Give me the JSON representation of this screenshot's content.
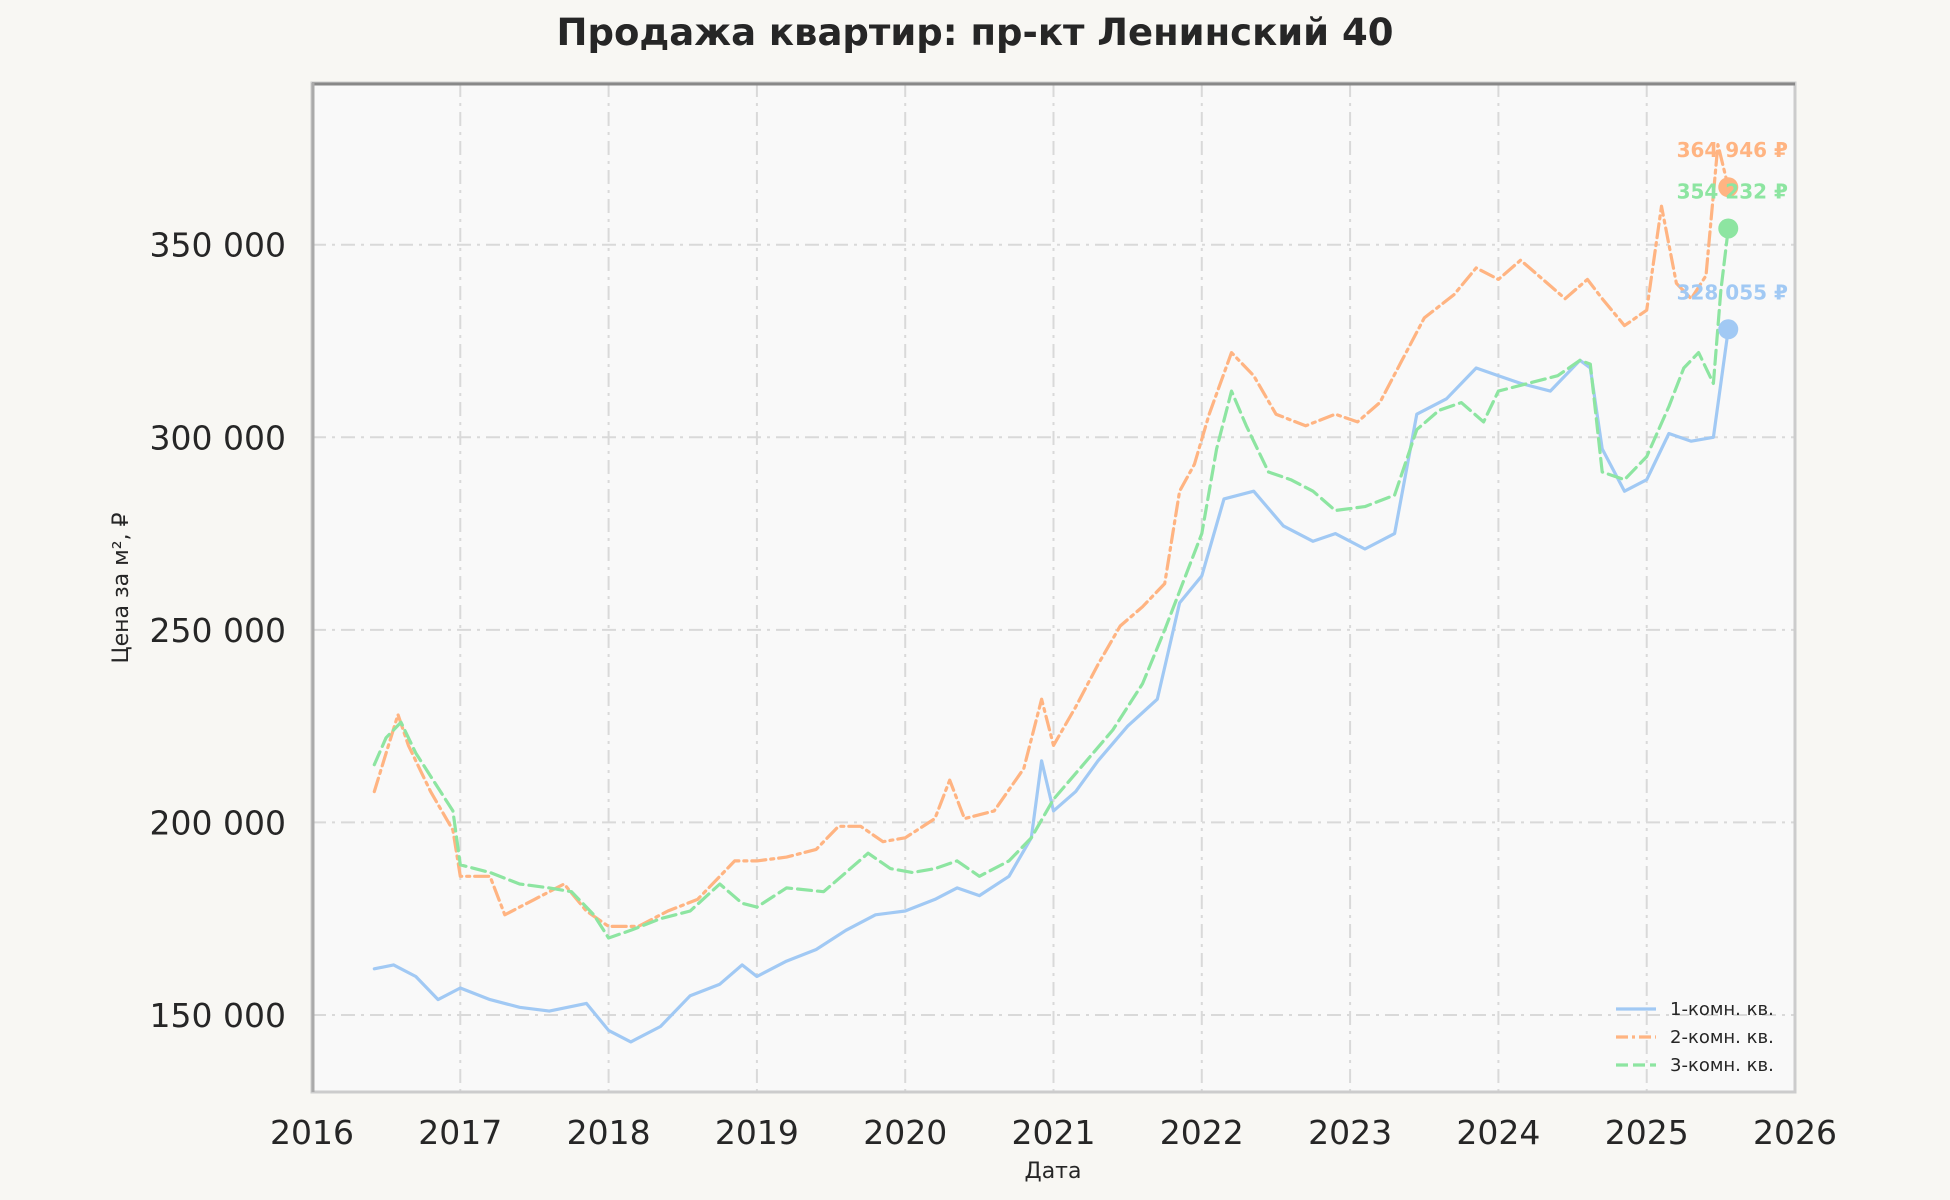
{
  "colors": {
    "background": "#f8f7f3",
    "plot_background": "#f9f9f9",
    "grid": "#d9d9d9",
    "series_1": "#a1c9f4",
    "series_2": "#ffb482",
    "series_3": "#8de5a1"
  },
  "chart_data": {
    "type": "line",
    "title": "Продажа квартир: пр-кт Ленинский 40",
    "xlabel": "Дата",
    "ylabel": "Цена за м², ₽",
    "xlim": [
      2016.0,
      2026.0
    ],
    "ylim": [
      130000,
      392000
    ],
    "x_ticks": [
      "2016",
      "2017",
      "2018",
      "2019",
      "2020",
      "2021",
      "2022",
      "2023",
      "2024",
      "2025",
      "2026"
    ],
    "y_ticks": [
      {
        "value": 150000,
        "label": "150 000"
      },
      {
        "value": 200000,
        "label": "200 000"
      },
      {
        "value": 250000,
        "label": "250 000"
      },
      {
        "value": 300000,
        "label": "300 000"
      },
      {
        "value": 350000,
        "label": "350 000"
      }
    ],
    "grid": true,
    "legend_position": "bottom-right",
    "x_unit": "year (decimal)",
    "series": [
      {
        "name": "1-комн. кв.",
        "color": "#a1c9f4",
        "dash": "solid",
        "end_label": "328 055 ₽",
        "end_value": 328055,
        "points": [
          [
            2016.42,
            162000
          ],
          [
            2016.55,
            163000
          ],
          [
            2016.7,
            160000
          ],
          [
            2016.85,
            154000
          ],
          [
            2017.0,
            157000
          ],
          [
            2017.2,
            154000
          ],
          [
            2017.4,
            152000
          ],
          [
            2017.6,
            151000
          ],
          [
            2017.85,
            153000
          ],
          [
            2018.0,
            146000
          ],
          [
            2018.15,
            143000
          ],
          [
            2018.35,
            147000
          ],
          [
            2018.55,
            155000
          ],
          [
            2018.75,
            158000
          ],
          [
            2018.9,
            163000
          ],
          [
            2019.0,
            160000
          ],
          [
            2019.2,
            164000
          ],
          [
            2019.4,
            167000
          ],
          [
            2019.6,
            172000
          ],
          [
            2019.8,
            176000
          ],
          [
            2020.0,
            177000
          ],
          [
            2020.2,
            180000
          ],
          [
            2020.35,
            183000
          ],
          [
            2020.5,
            181000
          ],
          [
            2020.7,
            186000
          ],
          [
            2020.85,
            196000
          ],
          [
            2020.92,
            216000
          ],
          [
            2021.0,
            203000
          ],
          [
            2021.15,
            208000
          ],
          [
            2021.3,
            216000
          ],
          [
            2021.5,
            225000
          ],
          [
            2021.7,
            232000
          ],
          [
            2021.85,
            257000
          ],
          [
            2022.0,
            264000
          ],
          [
            2022.15,
            284000
          ],
          [
            2022.35,
            286000
          ],
          [
            2022.55,
            277000
          ],
          [
            2022.75,
            273000
          ],
          [
            2022.9,
            275000
          ],
          [
            2023.1,
            271000
          ],
          [
            2023.3,
            275000
          ],
          [
            2023.45,
            306000
          ],
          [
            2023.65,
            310000
          ],
          [
            2023.85,
            318000
          ],
          [
            2024.0,
            316000
          ],
          [
            2024.15,
            314000
          ],
          [
            2024.35,
            312000
          ],
          [
            2024.55,
            320000
          ],
          [
            2024.62,
            318000
          ],
          [
            2024.7,
            297000
          ],
          [
            2024.85,
            286000
          ],
          [
            2025.0,
            289000
          ],
          [
            2025.15,
            301000
          ],
          [
            2025.3,
            299000
          ],
          [
            2025.45,
            300000
          ],
          [
            2025.55,
            328055
          ]
        ]
      },
      {
        "name": "2-комн. кв.",
        "color": "#ffb482",
        "dash": "dashdot",
        "end_label": "364 946 ₽",
        "end_value": 364946,
        "points": [
          [
            2016.42,
            208000
          ],
          [
            2016.5,
            218000
          ],
          [
            2016.58,
            228000
          ],
          [
            2016.65,
            220000
          ],
          [
            2016.8,
            208000
          ],
          [
            2016.95,
            198000
          ],
          [
            2017.0,
            186000
          ],
          [
            2017.2,
            186000
          ],
          [
            2017.3,
            176000
          ],
          [
            2017.5,
            180000
          ],
          [
            2017.7,
            184000
          ],
          [
            2017.85,
            177000
          ],
          [
            2018.0,
            173000
          ],
          [
            2018.2,
            173000
          ],
          [
            2018.4,
            177000
          ],
          [
            2018.6,
            180000
          ],
          [
            2018.85,
            190000
          ],
          [
            2019.0,
            190000
          ],
          [
            2019.2,
            191000
          ],
          [
            2019.4,
            193000
          ],
          [
            2019.55,
            199000
          ],
          [
            2019.7,
            199000
          ],
          [
            2019.85,
            195000
          ],
          [
            2020.0,
            196000
          ],
          [
            2020.2,
            201000
          ],
          [
            2020.3,
            211000
          ],
          [
            2020.4,
            201000
          ],
          [
            2020.6,
            203000
          ],
          [
            2020.8,
            214000
          ],
          [
            2020.92,
            232000
          ],
          [
            2021.0,
            220000
          ],
          [
            2021.15,
            230000
          ],
          [
            2021.3,
            241000
          ],
          [
            2021.45,
            251000
          ],
          [
            2021.6,
            256000
          ],
          [
            2021.75,
            262000
          ],
          [
            2021.85,
            286000
          ],
          [
            2021.95,
            293000
          ],
          [
            2022.05,
            306000
          ],
          [
            2022.2,
            322000
          ],
          [
            2022.35,
            316000
          ],
          [
            2022.5,
            306000
          ],
          [
            2022.7,
            303000
          ],
          [
            2022.9,
            306000
          ],
          [
            2023.05,
            304000
          ],
          [
            2023.2,
            309000
          ],
          [
            2023.35,
            320000
          ],
          [
            2023.5,
            331000
          ],
          [
            2023.7,
            337000
          ],
          [
            2023.85,
            344000
          ],
          [
            2024.0,
            341000
          ],
          [
            2024.15,
            346000
          ],
          [
            2024.3,
            341000
          ],
          [
            2024.45,
            336000
          ],
          [
            2024.6,
            341000
          ],
          [
            2024.7,
            336000
          ],
          [
            2024.85,
            329000
          ],
          [
            2025.0,
            333000
          ],
          [
            2025.1,
            360000
          ],
          [
            2025.2,
            340000
          ],
          [
            2025.3,
            336000
          ],
          [
            2025.4,
            342000
          ],
          [
            2025.48,
            376000
          ],
          [
            2025.55,
            364946
          ]
        ]
      },
      {
        "name": "3-комн. кв.",
        "color": "#8de5a1",
        "dash": "dashed",
        "end_label": "354 232 ₽",
        "end_value": 354232,
        "points": [
          [
            2016.42,
            215000
          ],
          [
            2016.5,
            222000
          ],
          [
            2016.6,
            226000
          ],
          [
            2016.7,
            218000
          ],
          [
            2016.8,
            212000
          ],
          [
            2016.95,
            203000
          ],
          [
            2017.0,
            189000
          ],
          [
            2017.2,
            187000
          ],
          [
            2017.4,
            184000
          ],
          [
            2017.6,
            183000
          ],
          [
            2017.75,
            182000
          ],
          [
            2017.9,
            176000
          ],
          [
            2018.0,
            170000
          ],
          [
            2018.15,
            172000
          ],
          [
            2018.35,
            175000
          ],
          [
            2018.55,
            177000
          ],
          [
            2018.75,
            184000
          ],
          [
            2018.9,
            179000
          ],
          [
            2019.0,
            178000
          ],
          [
            2019.2,
            183000
          ],
          [
            2019.45,
            182000
          ],
          [
            2019.6,
            187000
          ],
          [
            2019.75,
            192000
          ],
          [
            2019.9,
            188000
          ],
          [
            2020.05,
            187000
          ],
          [
            2020.2,
            188000
          ],
          [
            2020.35,
            190000
          ],
          [
            2020.5,
            186000
          ],
          [
            2020.7,
            190000
          ],
          [
            2020.85,
            196000
          ],
          [
            2021.0,
            206000
          ],
          [
            2021.2,
            215000
          ],
          [
            2021.4,
            224000
          ],
          [
            2021.6,
            236000
          ],
          [
            2021.75,
            250000
          ],
          [
            2021.9,
            265000
          ],
          [
            2022.0,
            275000
          ],
          [
            2022.1,
            297000
          ],
          [
            2022.2,
            312000
          ],
          [
            2022.3,
            303000
          ],
          [
            2022.45,
            291000
          ],
          [
            2022.6,
            289000
          ],
          [
            2022.75,
            286000
          ],
          [
            2022.9,
            281000
          ],
          [
            2023.1,
            282000
          ],
          [
            2023.3,
            285000
          ],
          [
            2023.45,
            302000
          ],
          [
            2023.6,
            307000
          ],
          [
            2023.75,
            309000
          ],
          [
            2023.9,
            304000
          ],
          [
            2024.0,
            312000
          ],
          [
            2024.2,
            314000
          ],
          [
            2024.4,
            316000
          ],
          [
            2024.55,
            320000
          ],
          [
            2024.62,
            319000
          ],
          [
            2024.7,
            291000
          ],
          [
            2024.85,
            289000
          ],
          [
            2025.0,
            295000
          ],
          [
            2025.15,
            308000
          ],
          [
            2025.25,
            318000
          ],
          [
            2025.35,
            322000
          ],
          [
            2025.45,
            314000
          ],
          [
            2025.5,
            338000
          ],
          [
            2025.55,
            354232
          ]
        ]
      }
    ]
  }
}
